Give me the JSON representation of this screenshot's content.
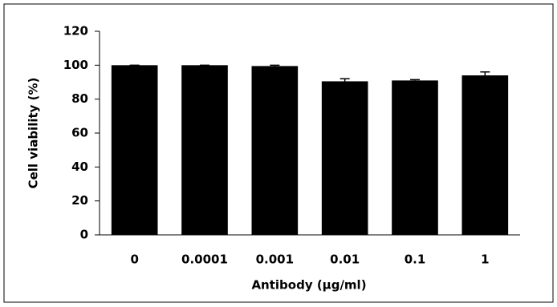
{
  "chart_data": {
    "type": "bar",
    "x_label": "Antibody (µg/ml)",
    "y_label": "Cell viability (%)",
    "categories": [
      "0",
      "0.0001",
      "0.001",
      "0.01",
      "0.1",
      "1"
    ],
    "values": [
      100,
      100,
      99.5,
      90.5,
      91,
      94
    ],
    "errors": [
      0,
      0,
      0.5,
      1.5,
      0.5,
      2
    ],
    "color": "#000000",
    "ylim": [
      0,
      120
    ],
    "yticks": [
      0,
      20,
      40,
      60,
      80,
      100,
      120
    ],
    "grid": false
  }
}
